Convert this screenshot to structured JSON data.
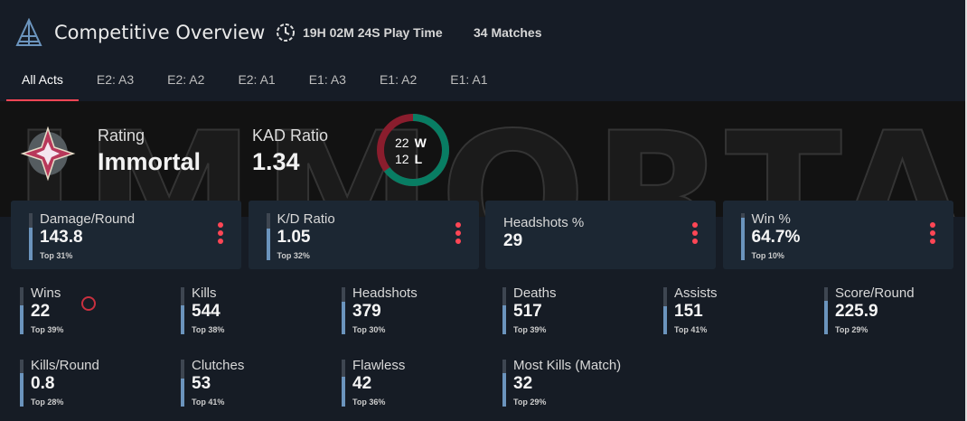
{
  "header": {
    "title": "Competitive Overview",
    "play_time": "19H 02M 24S Play Time",
    "matches": "34 Matches"
  },
  "tabs": [
    {
      "label": "All Acts",
      "active": true
    },
    {
      "label": "E2: A3"
    },
    {
      "label": "E2: A2"
    },
    {
      "label": "E2: A1"
    },
    {
      "label": "E1: A3"
    },
    {
      "label": "E1: A2"
    },
    {
      "label": "E1: A1"
    }
  ],
  "hero": {
    "watermark": "IMMORTAL",
    "rating_label": "Rating",
    "rating_value": "Immortal",
    "kad_label": "KAD Ratio",
    "kad_value": "1.34",
    "wins": "22",
    "wins_label": "W",
    "losses": "12",
    "losses_label": "L",
    "win_fraction": 0.647,
    "colors": {
      "win": "#087d63",
      "loss": "#8a1d2d"
    }
  },
  "cards": [
    {
      "label": "Damage/Round",
      "value": "143.8",
      "top": "Top 31%",
      "fill": 0.69
    },
    {
      "label": "K/D Ratio",
      "value": "1.05",
      "top": "Top 32%",
      "fill": 0.68
    },
    {
      "label": "Headshots %",
      "value": "29",
      "top": "",
      "fill": null
    },
    {
      "label": "Win %",
      "value": "64.7%",
      "top": "Top 10%",
      "fill": 0.9
    }
  ],
  "stats": [
    {
      "label": "Wins",
      "value": "22",
      "top": "Top 39%",
      "fill": 0.61
    },
    {
      "label": "Kills",
      "value": "544",
      "top": "Top 38%",
      "fill": 0.62
    },
    {
      "label": "Headshots",
      "value": "379",
      "top": "Top 30%",
      "fill": 0.7
    },
    {
      "label": "Deaths",
      "value": "517",
      "top": "Top 39%",
      "fill": 0.61
    },
    {
      "label": "Assists",
      "value": "151",
      "top": "Top 41%",
      "fill": 0.59
    },
    {
      "label": "Score/Round",
      "value": "225.9",
      "top": "Top 29%",
      "fill": 0.71
    },
    {
      "label": "Kills/Round",
      "value": "0.8",
      "top": "Top 28%",
      "fill": 0.72
    },
    {
      "label": "Clutches",
      "value": "53",
      "top": "Top 41%",
      "fill": 0.59
    },
    {
      "label": "Flawless",
      "value": "42",
      "top": "Top 36%",
      "fill": 0.64
    },
    {
      "label": "Most Kills (Match)",
      "value": "32",
      "top": "Top 29%",
      "fill": 0.71
    }
  ]
}
